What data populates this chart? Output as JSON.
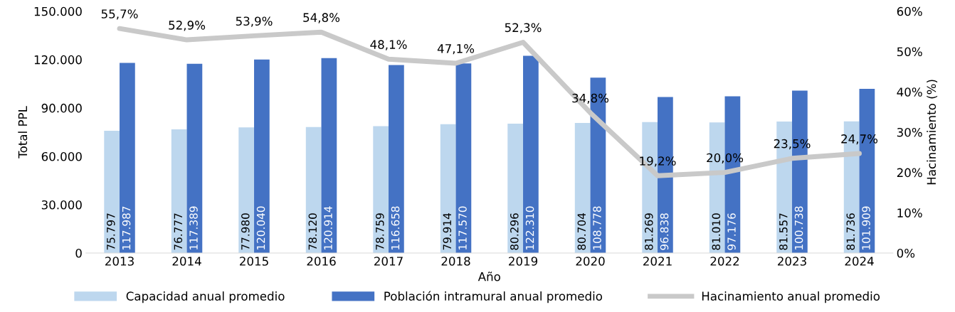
{
  "chart_data": {
    "type": "bar",
    "xlabel": "Año",
    "ylabel": "Total PPL",
    "y2label": "Hacinamiento (%)",
    "categories": [
      "2013",
      "2014",
      "2015",
      "2016",
      "2017",
      "2018",
      "2019",
      "2020",
      "2021",
      "2022",
      "2023",
      "2024"
    ],
    "series": [
      {
        "name": "Capacidad anual promedio",
        "color": "#bdd7ee",
        "values": [
          75797,
          76777,
          77980,
          78120,
          78759,
          79914,
          80296,
          80704,
          81269,
          81010,
          81557,
          81736
        ],
        "value_labels": [
          "75.797",
          "76.777",
          "77.980",
          "78.120",
          "78.759",
          "79.914",
          "80.296",
          "80.704",
          "81.269",
          "81.010",
          "81.557",
          "81.736"
        ]
      },
      {
        "name": "Población intramural anual promedio",
        "color": "#4472c4",
        "values": [
          117987,
          117389,
          120040,
          120914,
          116658,
          117570,
          122310,
          108778,
          96838,
          97176,
          100738,
          101909
        ],
        "value_labels": [
          "117.987",
          "117.389",
          "120.040",
          "120.914",
          "116.658",
          "117.570",
          "122.310",
          "108.778",
          "96.838",
          "97.176",
          "100.738",
          "101.909"
        ]
      },
      {
        "name": "Hacinamiento anual promedio",
        "type": "line",
        "axis": "y2",
        "color": "#c9c9c9",
        "values": [
          55.7,
          52.9,
          53.9,
          54.8,
          48.1,
          47.1,
          52.3,
          34.8,
          19.2,
          20.0,
          23.5,
          24.7
        ],
        "value_labels": [
          "55,7%",
          "52,9%",
          "53,9%",
          "54,8%",
          "48,1%",
          "47,1%",
          "52,3%",
          "34,8%",
          "19,2%",
          "20,0%",
          "23,5%",
          "24,7%"
        ]
      }
    ],
    "ylim": [
      0,
      150000
    ],
    "yticks": [
      {
        "value": 0,
        "label": "0"
      },
      {
        "value": 30000,
        "label": "30.000"
      },
      {
        "value": 60000,
        "label": "60.000"
      },
      {
        "value": 90000,
        "label": "90.000"
      },
      {
        "value": 120000,
        "label": "120.000"
      },
      {
        "value": 150000,
        "label": "150.000"
      }
    ],
    "y2lim": [
      0,
      60
    ],
    "y2ticks": [
      {
        "value": 0,
        "label": "0%"
      },
      {
        "value": 10,
        "label": "10%"
      },
      {
        "value": 20,
        "label": "20%"
      },
      {
        "value": 30,
        "label": "30%"
      },
      {
        "value": 40,
        "label": "40%"
      },
      {
        "value": 50,
        "label": "50%"
      },
      {
        "value": 60,
        "label": "60%"
      }
    ],
    "grid": false,
    "legend": "bottom",
    "marker": "none",
    "line_style": "solid"
  }
}
